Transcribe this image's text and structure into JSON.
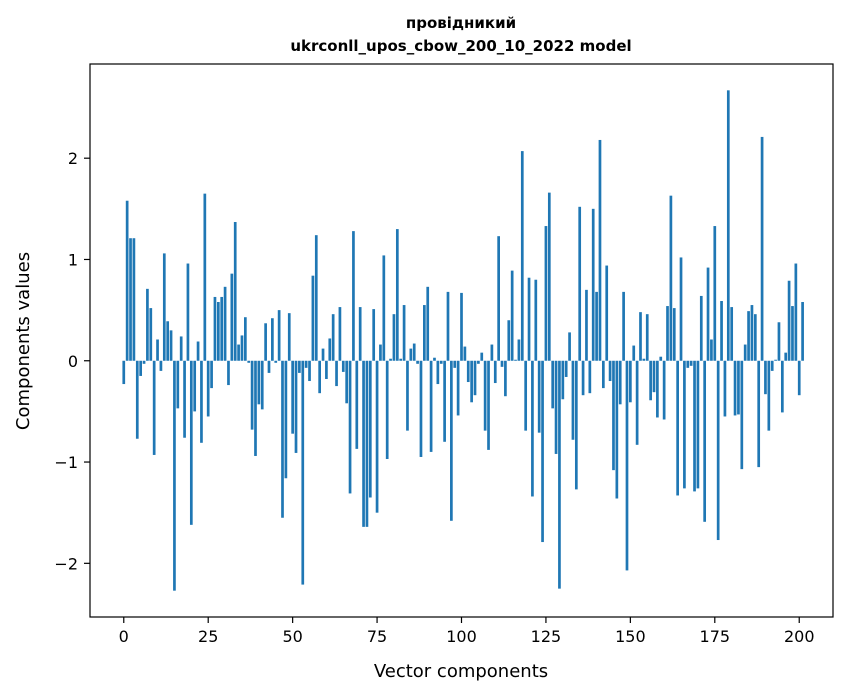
{
  "chart_data": {
    "type": "bar",
    "title": "провідникий",
    "subtitle": "ukrconll_upos_cbow_200_10_2022 model",
    "xlabel": "Vector components",
    "ylabel": "Components values",
    "xlim": [
      -10,
      210
    ],
    "ylim": [
      -2.53,
      2.93
    ],
    "xticks": [
      0,
      25,
      50,
      75,
      100,
      125,
      150,
      175,
      200
    ],
    "yticks": [
      -2,
      -1,
      0,
      1,
      2
    ],
    "ytick_labels": [
      "−2",
      "−1",
      "0",
      "1",
      "2"
    ],
    "bar_color": "#1f77b4",
    "legend": "none",
    "grid": false,
    "values": [
      -0.23,
      1.58,
      1.21,
      1.21,
      -0.77,
      -0.15,
      -0.03,
      0.71,
      0.52,
      -0.93,
      0.21,
      -0.1,
      1.06,
      0.39,
      0.3,
      -2.27,
      -0.47,
      0.24,
      -0.76,
      0.96,
      -1.62,
      -0.5,
      0.19,
      -0.81,
      1.65,
      -0.55,
      -0.27,
      0.63,
      0.58,
      0.63,
      0.73,
      -0.24,
      0.86,
      1.37,
      0.16,
      0.25,
      0.43,
      -0.02,
      -0.68,
      -0.94,
      -0.43,
      -0.48,
      0.37,
      -0.12,
      0.42,
      -0.02,
      0.5,
      -1.55,
      -1.16,
      0.47,
      -0.72,
      -0.91,
      -0.12,
      -2.21,
      -0.07,
      -0.2,
      0.84,
      1.24,
      -0.32,
      0.12,
      -0.18,
      0.22,
      0.46,
      -0.25,
      0.53,
      -0.11,
      -0.42,
      -1.31,
      1.28,
      -0.87,
      0.53,
      -1.64,
      -1.64,
      -1.35,
      0.51,
      -1.5,
      0.16,
      1.04,
      -0.97,
      0.02,
      0.46,
      1.3,
      0.02,
      0.55,
      -0.69,
      0.12,
      0.17,
      -0.03,
      -0.95,
      0.55,
      0.73,
      -0.9,
      0.03,
      -0.23,
      -0.03,
      -0.8,
      0.68,
      -1.58,
      -0.07,
      -0.54,
      0.67,
      0.14,
      -0.21,
      -0.41,
      -0.34,
      -0.03,
      0.08,
      -0.69,
      -0.88,
      0.16,
      -0.22,
      1.23,
      -0.06,
      -0.35,
      0.4,
      0.89,
      0.01,
      0.21,
      2.07,
      -0.69,
      0.82,
      -1.34,
      0.8,
      -0.71,
      -1.79,
      1.33,
      1.66,
      -0.47,
      -0.92,
      -2.25,
      -0.38,
      -0.16,
      0.28,
      -0.78,
      -1.27,
      1.52,
      -0.34,
      0.7,
      -0.32,
      1.5,
      0.68,
      2.18,
      -0.27,
      0.94,
      -0.2,
      -1.08,
      -1.36,
      -0.43,
      0.68,
      -2.07,
      -0.41,
      0.15,
      -0.83,
      0.48,
      0.02,
      0.46,
      -0.39,
      -0.31,
      -0.56,
      0.04,
      -0.58,
      0.54,
      1.63,
      0.52,
      -1.33,
      1.02,
      -1.26,
      -0.07,
      -0.05,
      -1.29,
      -1.26,
      0.64,
      -1.59,
      0.92,
      0.21,
      1.33,
      -1.77,
      0.59,
      -0.55,
      2.67,
      0.53,
      -0.54,
      -0.53,
      -1.07,
      0.16,
      0.49,
      0.55,
      0.46,
      -1.05,
      2.21,
      -0.33,
      -0.69,
      -0.1,
      0.01,
      0.38,
      -0.51,
      0.08,
      0.79,
      0.54,
      0.96,
      -0.34,
      0.58
    ]
  }
}
